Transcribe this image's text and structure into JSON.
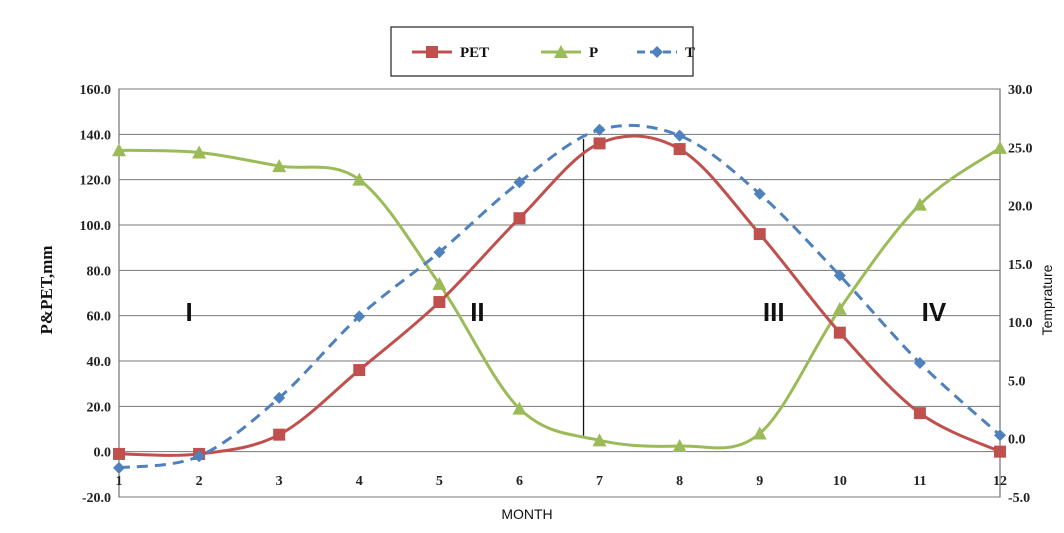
{
  "chart_data": {
    "type": "line",
    "xlabel": "MONTH",
    "ylabel": "P&PET,mm",
    "y2label": "Temprature",
    "x": [
      1,
      2,
      3,
      4,
      5,
      6,
      7,
      8,
      9,
      10,
      11,
      12
    ],
    "x_tick_labels": [
      "1",
      "2",
      "3",
      "4",
      "5",
      "6",
      "7",
      "8",
      "9",
      "10",
      "11",
      "12"
    ],
    "ylim": [
      -20,
      160
    ],
    "y_tick_labels": [
      "-20.0",
      "0.0",
      "20.0",
      "40.0",
      "60.0",
      "80.0",
      "100.0",
      "120.0",
      "140.0",
      "160.0"
    ],
    "y2lim": [
      -5,
      30
    ],
    "y2_tick_labels": [
      "-5.0",
      "0.0",
      "5.0",
      "10.0",
      "15.0",
      "20.0",
      "25.0",
      "30.0"
    ],
    "grid": true,
    "legend_position": "top-center",
    "series": [
      {
        "name": "PET",
        "axis": "left",
        "color": "#c0504d",
        "marker": "square",
        "style": "solid",
        "values": [
          -1,
          -1,
          7.5,
          36,
          66,
          103,
          136,
          133.5,
          96,
          52.5,
          17,
          0
        ]
      },
      {
        "name": "P",
        "axis": "left",
        "color": "#9bbb59",
        "marker": "triangle",
        "style": "solid",
        "values": [
          133,
          132,
          126,
          120,
          74,
          19,
          5,
          2.5,
          8,
          63,
          109,
          134
        ]
      },
      {
        "name": "T",
        "axis": "right",
        "color": "#4f81bd",
        "marker": "diamond",
        "style": "dashed",
        "values": [
          -2.5,
          -1.5,
          3.5,
          10.5,
          16,
          22,
          26.5,
          26,
          21,
          14,
          6.5,
          0.3
        ]
      }
    ],
    "region_labels": [
      "I",
      "II",
      "III",
      "IV"
    ],
    "region_label_x": [
      2.0,
      5.6,
      9.3,
      11.3
    ],
    "divider_month": 6.8
  }
}
